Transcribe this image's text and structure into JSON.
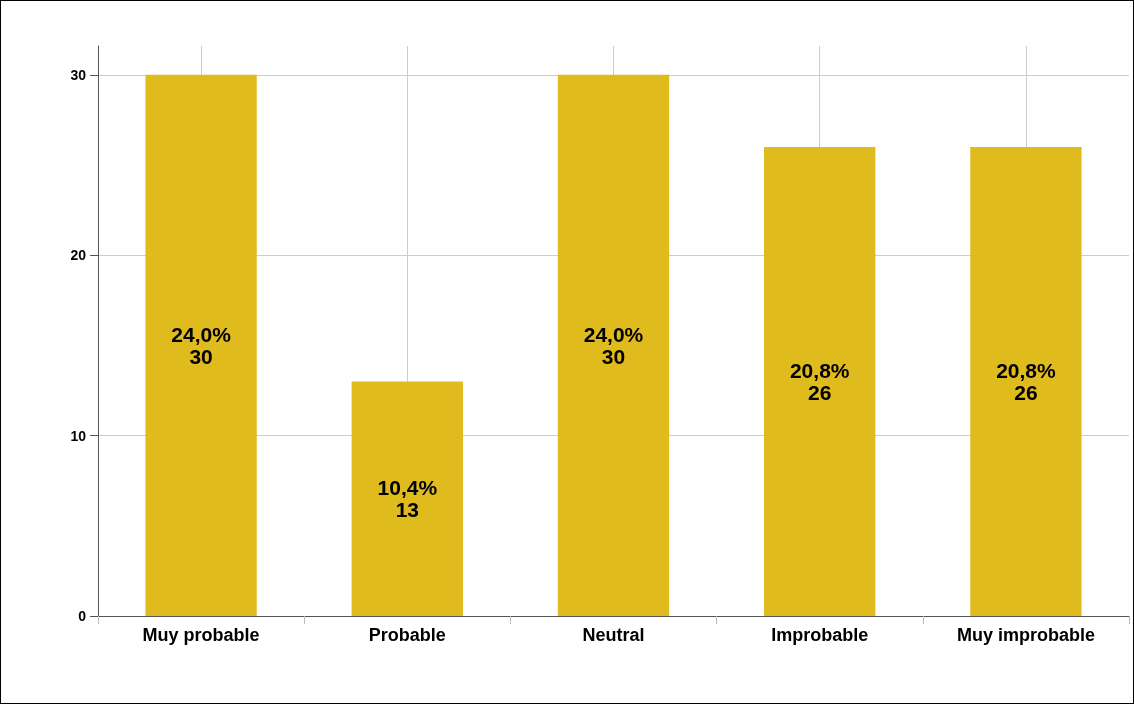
{
  "chart_data": {
    "type": "bar",
    "categories": [
      "Muy probable",
      "Probable",
      "Neutral",
      "Improbable",
      "Muy improbable"
    ],
    "values": [
      30,
      13,
      30,
      26,
      26
    ],
    "value_labels": [
      "24,0%\n30",
      "10,4%\n13",
      "24,0%\n30",
      "20,8%\n26",
      "20,8%\n26"
    ],
    "color": "#e0bb1e",
    "ylim": [
      0,
      31.6
    ],
    "yticks": [
      0,
      10,
      20,
      30
    ],
    "grid": true
  }
}
